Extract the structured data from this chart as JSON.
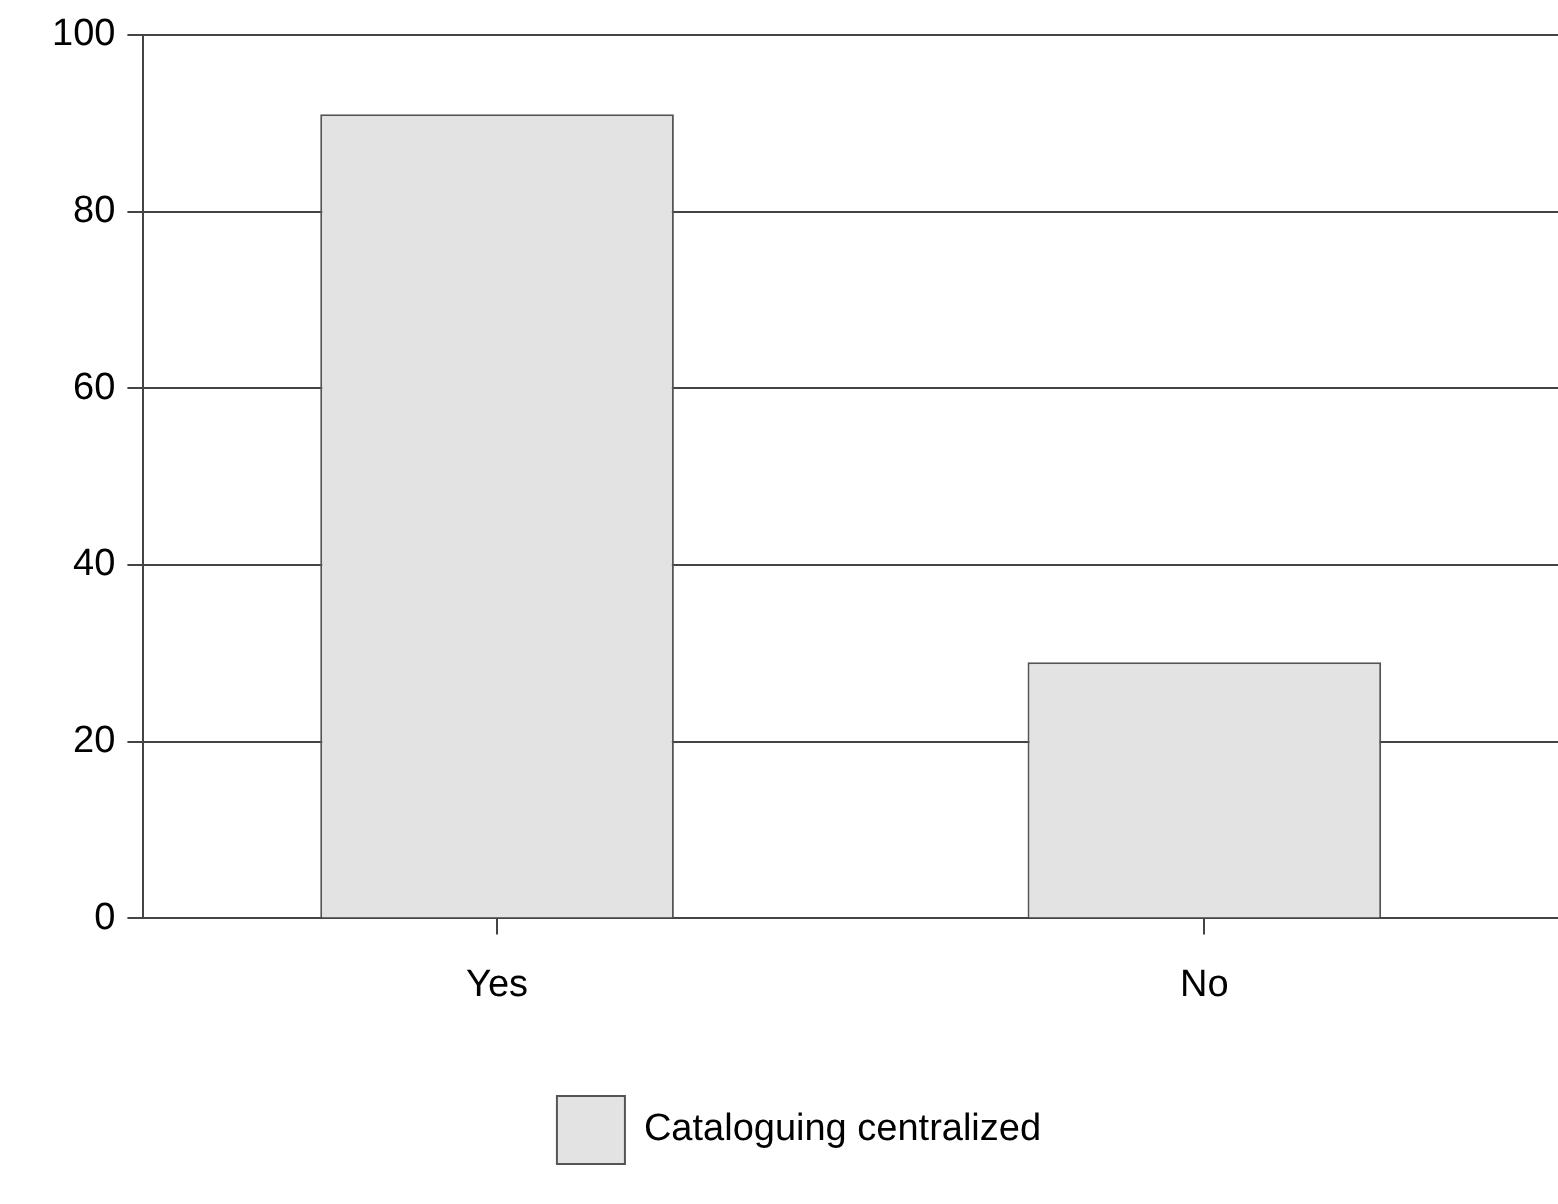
{
  "chart_data": {
    "type": "bar",
    "categories": [
      "Yes",
      "No"
    ],
    "series": [
      {
        "name": "Cataloguing centralized",
        "color": "#e3e3e3",
        "values": [
          91,
          29
        ]
      }
    ],
    "ylim": [
      0,
      100
    ],
    "yticks": [
      0,
      20,
      40,
      60,
      80,
      100
    ],
    "grid": "y",
    "legend": "bottom"
  }
}
